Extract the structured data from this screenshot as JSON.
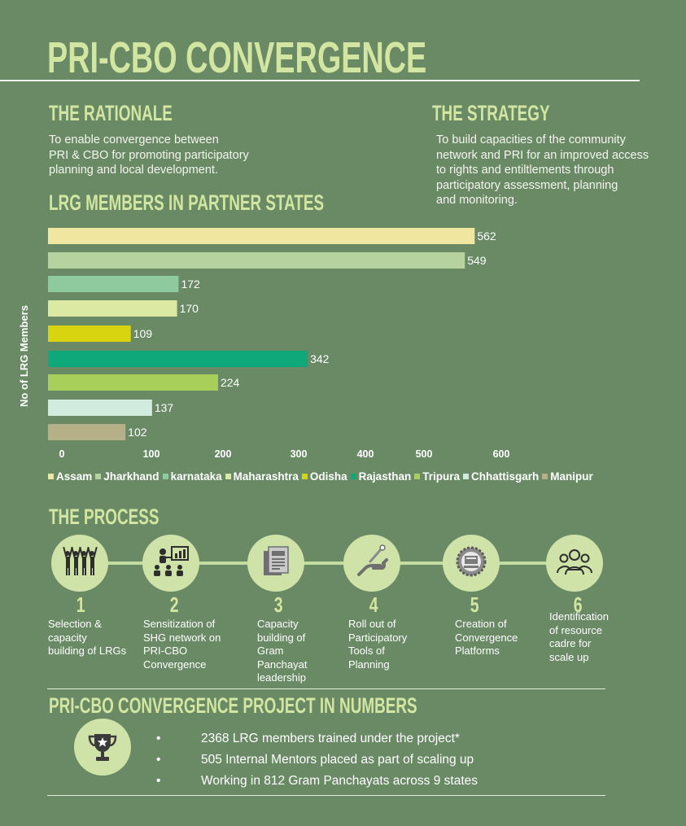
{
  "page_title": "PRI-CBO CONVERGENCE",
  "rationale": {
    "title": "THE RATIONALE",
    "text": "To enable convergence between\nPRI & CBO for promoting participatory\nplanning and local development."
  },
  "strategy": {
    "title": "THE STRATEGY",
    "text": "To build capacities of the community\nnetwork and PRI for an improved access\nto rights and entiltlements through\nparticipatory assessment, planning\nand monitoring."
  },
  "chart_data": {
    "type": "bar",
    "orientation": "horizontal",
    "title": "LRG MEMBERS IN PARTNER STATES",
    "ylabel": "No of LRG Members",
    "xlabel": "",
    "categories": [
      "Assam",
      "Jharkhand",
      "karnataka",
      "Maharashtra",
      "Odisha",
      "Rajasthan",
      "Tripura",
      "Chhattisgarh",
      "Manipur"
    ],
    "values": [
      562,
      549,
      172,
      170,
      109,
      342,
      224,
      137,
      102
    ],
    "colors": [
      "#f1e6a0",
      "#b6d29e",
      "#8fca9f",
      "#dbe9a3",
      "#d8d410",
      "#0fa87a",
      "#a8cf5a",
      "#d2ebdf",
      "#b5b088"
    ],
    "x_ticks": [
      "0",
      "100",
      "200",
      "300",
      "400",
      "500",
      "600"
    ],
    "xlim": [
      0,
      600
    ],
    "legend_position": "bottom",
    "grid": false
  },
  "process": {
    "title": "THE PROCESS",
    "steps": [
      {
        "num": "1",
        "text": "Selection &\ncapacity\nbuilding of LRGs",
        "icon": "people-raising-hands-icon"
      },
      {
        "num": "2",
        "text": "Sensitization of\nSHG network on\nPRI-CBO\nConvergence",
        "icon": "presentation-icon"
      },
      {
        "num": "3",
        "text": "Capacity\nbuilding of\nGram\n Panchayat\nleadership",
        "icon": "document-icon"
      },
      {
        "num": "4",
        "text": "Roll out of\nParticipatory\nTools of\nPlanning",
        "icon": "hand-tool-icon"
      },
      {
        "num": "5",
        "text": "Creation of\nConvergence\nPlatforms",
        "icon": "platform-gear-icon"
      },
      {
        "num": "6",
        "text": "Identification\nof resource\ncadre for\nscale up",
        "icon": "group-icon"
      }
    ]
  },
  "numbers": {
    "title": "PRI-CBO CONVERGENCE PROJECT IN NUMBERS",
    "bullet": "•",
    "items": [
      "2368 LRG members trained under the project*",
      "505 Internal Mentors placed as part of scaling up",
      "Working in 812 Gram Panchayats across 9 states"
    ],
    "icon": "trophy-icon"
  }
}
